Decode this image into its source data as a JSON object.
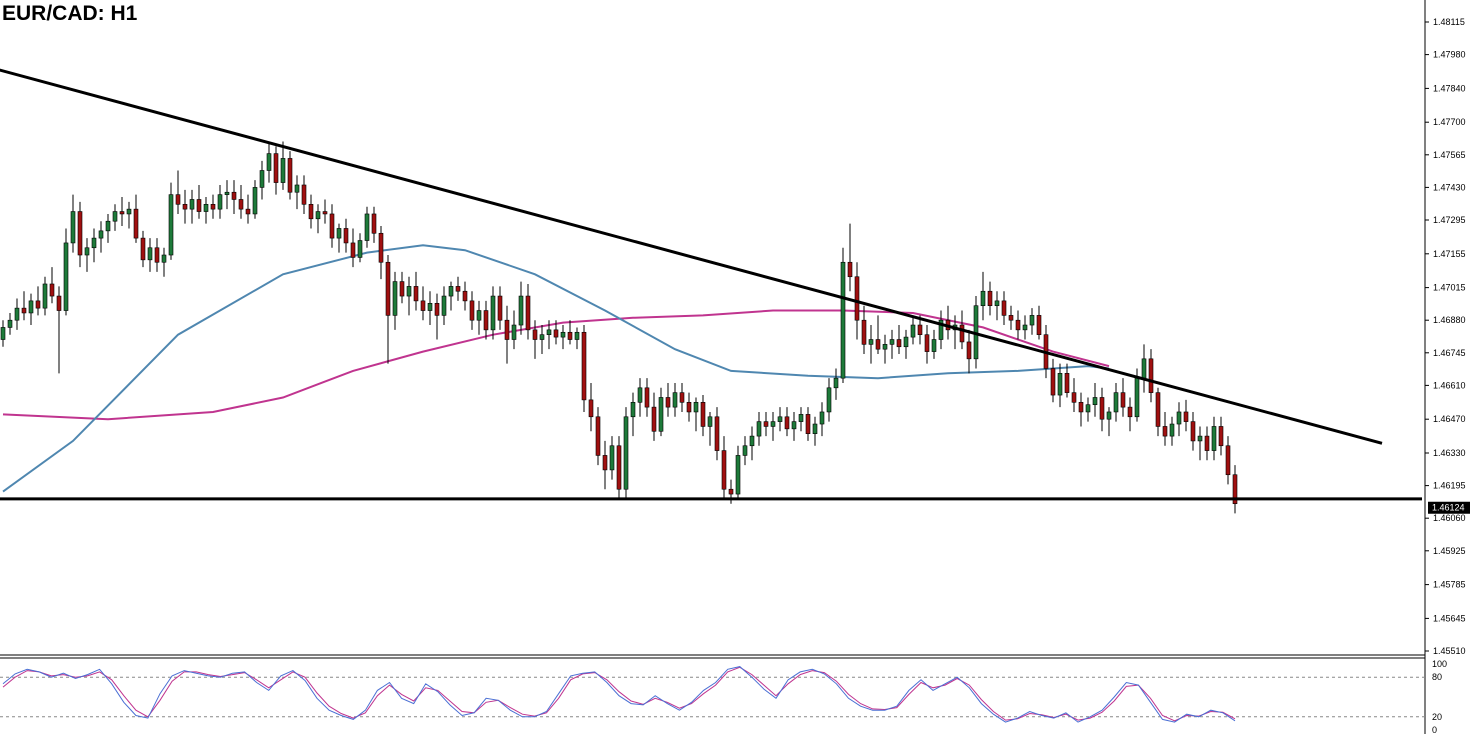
{
  "title": "EUR/CAD: H1",
  "chart_data": {
    "type": "candlestick",
    "symbol": "EUR/CAD",
    "timeframe": "H1",
    "ylim": [
      1.4551,
      1.4815
    ],
    "price_ticks": [
      "1.48115",
      "1.47980",
      "1.47840",
      "1.47700",
      "1.47565",
      "1.47430",
      "1.47295",
      "1.47155",
      "1.47015",
      "1.46880",
      "1.46745",
      "1.46610",
      "1.46470",
      "1.46330",
      "1.46195",
      "1.46060",
      "1.45925",
      "1.45785",
      "1.45645",
      "1.45510"
    ],
    "current_price_label": "1.46124",
    "current_price": 1.46124,
    "support_line_price": 1.4614,
    "trendline": {
      "start_bar": -8,
      "start_price": 1.47975,
      "end_bar": 197,
      "end_price": 1.4637
    },
    "ma_fast_color": "#4f87b0",
    "ma_slow_color": "#c0348f",
    "candle_up_color": "#1e7a3a",
    "candle_down_color": "#a01010",
    "ma_fast": [
      [
        0,
        1.4617
      ],
      [
        10,
        1.4638
      ],
      [
        25,
        1.4682
      ],
      [
        40,
        1.4707
      ],
      [
        52,
        1.4716
      ],
      [
        60,
        1.4719
      ],
      [
        66,
        1.4717
      ],
      [
        76,
        1.4707
      ],
      [
        86,
        1.4692
      ],
      [
        96,
        1.4676
      ],
      [
        104,
        1.4667
      ],
      [
        115,
        1.4665
      ],
      [
        125,
        1.4664
      ],
      [
        135,
        1.4666
      ],
      [
        145,
        1.4667
      ],
      [
        155,
        1.4669
      ],
      [
        158,
        1.4668
      ]
    ],
    "ma_slow": [
      [
        0,
        1.4649
      ],
      [
        15,
        1.4647
      ],
      [
        30,
        1.465
      ],
      [
        40,
        1.4656
      ],
      [
        50,
        1.4667
      ],
      [
        60,
        1.4675
      ],
      [
        70,
        1.4682
      ],
      [
        80,
        1.4687
      ],
      [
        90,
        1.4689
      ],
      [
        100,
        1.469
      ],
      [
        110,
        1.4692
      ],
      [
        120,
        1.4692
      ],
      [
        130,
        1.4691
      ],
      [
        140,
        1.4685
      ],
      [
        150,
        1.4675
      ],
      [
        158,
        1.4669
      ]
    ],
    "stochastic": {
      "levels": [
        "100",
        "80",
        "20",
        "0"
      ],
      "overbought": 80,
      "oversold": 20,
      "main_color": "#4a6fd4",
      "signal_color": "#c0348f",
      "main": [
        70,
        85,
        92,
        88,
        80,
        86,
        78,
        84,
        92,
        70,
        42,
        22,
        18,
        55,
        82,
        90,
        86,
        82,
        80,
        86,
        88,
        72,
        60,
        82,
        90,
        75,
        48,
        30,
        22,
        16,
        30,
        60,
        72,
        48,
        40,
        70,
        58,
        38,
        22,
        26,
        48,
        45,
        30,
        20,
        20,
        28,
        55,
        82,
        86,
        88,
        72,
        52,
        40,
        38,
        52,
        40,
        30,
        42,
        60,
        72,
        92,
        96,
        80,
        62,
        48,
        76,
        88,
        92,
        85,
        70,
        48,
        36,
        30,
        30,
        36,
        60,
        76,
        60,
        70,
        80,
        64,
        40,
        24,
        12,
        18,
        28,
        22,
        18,
        26,
        12,
        20,
        30,
        50,
        72,
        68,
        42,
        16,
        12,
        24,
        20,
        30,
        26,
        14
      ],
      "signal": [
        65,
        80,
        90,
        88,
        82,
        84,
        80,
        82,
        88,
        76,
        52,
        30,
        20,
        45,
        74,
        88,
        88,
        84,
        81,
        84,
        87,
        76,
        64,
        76,
        88,
        80,
        56,
        36,
        25,
        18,
        26,
        52,
        68,
        54,
        44,
        64,
        60,
        44,
        28,
        26,
        42,
        45,
        34,
        24,
        21,
        26,
        48,
        76,
        85,
        87,
        76,
        58,
        44,
        39,
        48,
        42,
        33,
        40,
        55,
        68,
        88,
        95,
        84,
        68,
        52,
        70,
        84,
        90,
        87,
        74,
        54,
        40,
        32,
        31,
        34,
        54,
        72,
        64,
        68,
        78,
        68,
        46,
        28,
        15,
        17,
        25,
        23,
        19,
        24,
        15,
        18,
        27,
        44,
        66,
        68,
        48,
        22,
        14,
        22,
        21,
        28,
        27,
        17
      ]
    },
    "ohlc": [
      [
        1.468,
        1.4688,
        1.4677,
        1.4685
      ],
      [
        1.4685,
        1.4691,
        1.4682,
        1.4688
      ],
      [
        1.4688,
        1.4697,
        1.4684,
        1.4693
      ],
      [
        1.4693,
        1.47,
        1.4688,
        1.4691
      ],
      [
        1.4691,
        1.4699,
        1.4686,
        1.4696
      ],
      [
        1.4696,
        1.4702,
        1.469,
        1.4693
      ],
      [
        1.4693,
        1.4706,
        1.469,
        1.4703
      ],
      [
        1.4703,
        1.471,
        1.4695,
        1.4698
      ],
      [
        1.4698,
        1.4702,
        1.4666,
        1.4692
      ],
      [
        1.4692,
        1.4726,
        1.469,
        1.472
      ],
      [
        1.472,
        1.474,
        1.4716,
        1.4733
      ],
      [
        1.4733,
        1.4737,
        1.471,
        1.4715
      ],
      [
        1.4715,
        1.4722,
        1.4708,
        1.4718
      ],
      [
        1.4718,
        1.4726,
        1.4712,
        1.4722
      ],
      [
        1.4722,
        1.4729,
        1.4716,
        1.4725
      ],
      [
        1.4725,
        1.4732,
        1.472,
        1.4729
      ],
      [
        1.4729,
        1.4736,
        1.4725,
        1.4733
      ],
      [
        1.4733,
        1.4739,
        1.4727,
        1.4732
      ],
      [
        1.4732,
        1.4737,
        1.4726,
        1.4734
      ],
      [
        1.4734,
        1.474,
        1.472,
        1.4722
      ],
      [
        1.4722,
        1.4725,
        1.471,
        1.4713
      ],
      [
        1.4713,
        1.4722,
        1.4708,
        1.4718
      ],
      [
        1.4718,
        1.4722,
        1.4708,
        1.4712
      ],
      [
        1.4712,
        1.4718,
        1.4706,
        1.4715
      ],
      [
        1.4715,
        1.4745,
        1.4713,
        1.474
      ],
      [
        1.474,
        1.475,
        1.4732,
        1.4736
      ],
      [
        1.4736,
        1.4742,
        1.4728,
        1.4734
      ],
      [
        1.4734,
        1.4742,
        1.4728,
        1.4738
      ],
      [
        1.4738,
        1.4744,
        1.473,
        1.4733
      ],
      [
        1.4733,
        1.4739,
        1.4728,
        1.4736
      ],
      [
        1.4736,
        1.474,
        1.473,
        1.4734
      ],
      [
        1.4734,
        1.4744,
        1.473,
        1.474
      ],
      [
        1.474,
        1.4746,
        1.4734,
        1.4741
      ],
      [
        1.4741,
        1.4746,
        1.4732,
        1.4738
      ],
      [
        1.4738,
        1.4744,
        1.473,
        1.4734
      ],
      [
        1.4734,
        1.474,
        1.4728,
        1.4732
      ],
      [
        1.4732,
        1.4746,
        1.473,
        1.4743
      ],
      [
        1.4743,
        1.4754,
        1.4738,
        1.475
      ],
      [
        1.475,
        1.4762,
        1.4745,
        1.4757
      ],
      [
        1.4757,
        1.476,
        1.474,
        1.4745
      ],
      [
        1.4745,
        1.4762,
        1.4742,
        1.4755
      ],
      [
        1.4755,
        1.4758,
        1.4738,
        1.4741
      ],
      [
        1.4741,
        1.4748,
        1.4734,
        1.4744
      ],
      [
        1.4744,
        1.4748,
        1.4732,
        1.4736
      ],
      [
        1.4736,
        1.474,
        1.4726,
        1.473
      ],
      [
        1.473,
        1.4736,
        1.4724,
        1.4733
      ],
      [
        1.4733,
        1.4738,
        1.4728,
        1.4732
      ],
      [
        1.4732,
        1.4736,
        1.4718,
        1.4722
      ],
      [
        1.4722,
        1.4728,
        1.4716,
        1.4726
      ],
      [
        1.4726,
        1.473,
        1.4716,
        1.472
      ],
      [
        1.472,
        1.4726,
        1.471,
        1.4714
      ],
      [
        1.4714,
        1.4724,
        1.4712,
        1.4721
      ],
      [
        1.4721,
        1.4735,
        1.4718,
        1.4732
      ],
      [
        1.4732,
        1.4735,
        1.472,
        1.4724
      ],
      [
        1.4724,
        1.4727,
        1.4705,
        1.4712
      ],
      [
        1.4712,
        1.4715,
        1.467,
        1.469
      ],
      [
        1.469,
        1.4708,
        1.4684,
        1.4704
      ],
      [
        1.4704,
        1.4708,
        1.4695,
        1.4698
      ],
      [
        1.4698,
        1.4706,
        1.469,
        1.4702
      ],
      [
        1.4702,
        1.4708,
        1.4692,
        1.4696
      ],
      [
        1.4696,
        1.4702,
        1.4688,
        1.4692
      ],
      [
        1.4692,
        1.47,
        1.4686,
        1.4695
      ],
      [
        1.4695,
        1.4699,
        1.468,
        1.469
      ],
      [
        1.469,
        1.4702,
        1.4686,
        1.4698
      ],
      [
        1.4698,
        1.4704,
        1.4692,
        1.4702
      ],
      [
        1.4702,
        1.4706,
        1.4696,
        1.47
      ],
      [
        1.47,
        1.4704,
        1.4692,
        1.4696
      ],
      [
        1.4696,
        1.47,
        1.4684,
        1.4688
      ],
      [
        1.4688,
        1.4696,
        1.4682,
        1.4692
      ],
      [
        1.4692,
        1.4696,
        1.468,
        1.4684
      ],
      [
        1.4684,
        1.4702,
        1.468,
        1.4698
      ],
      [
        1.4698,
        1.4702,
        1.4684,
        1.4688
      ],
      [
        1.4688,
        1.4694,
        1.467,
        1.468
      ],
      [
        1.468,
        1.4692,
        1.4676,
        1.4686
      ],
      [
        1.4686,
        1.4704,
        1.4682,
        1.4698
      ],
      [
        1.4698,
        1.4703,
        1.468,
        1.4684
      ],
      [
        1.4684,
        1.4688,
        1.4672,
        1.468
      ],
      [
        1.468,
        1.4686,
        1.4674,
        1.4682
      ],
      [
        1.4682,
        1.4688,
        1.4676,
        1.4684
      ],
      [
        1.4684,
        1.4688,
        1.4678,
        1.4681
      ],
      [
        1.4681,
        1.4686,
        1.4676,
        1.4683
      ],
      [
        1.4683,
        1.4688,
        1.4678,
        1.468
      ],
      [
        1.468,
        1.4685,
        1.4676,
        1.4683
      ],
      [
        1.4683,
        1.4686,
        1.465,
        1.4655
      ],
      [
        1.4655,
        1.4662,
        1.4642,
        1.4648
      ],
      [
        1.4648,
        1.4652,
        1.4628,
        1.4632
      ],
      [
        1.4632,
        1.4638,
        1.4618,
        1.4626
      ],
      [
        1.4626,
        1.464,
        1.4622,
        1.4636
      ],
      [
        1.4636,
        1.464,
        1.4614,
        1.4618
      ],
      [
        1.4618,
        1.4652,
        1.4614,
        1.4648
      ],
      [
        1.4648,
        1.4658,
        1.464,
        1.4654
      ],
      [
        1.4654,
        1.4664,
        1.4648,
        1.466
      ],
      [
        1.466,
        1.4664,
        1.4648,
        1.4652
      ],
      [
        1.4652,
        1.4658,
        1.4638,
        1.4642
      ],
      [
        1.4642,
        1.466,
        1.464,
        1.4656
      ],
      [
        1.4656,
        1.4662,
        1.4648,
        1.4652
      ],
      [
        1.4652,
        1.4662,
        1.4648,
        1.4658
      ],
      [
        1.4658,
        1.4662,
        1.465,
        1.4654
      ],
      [
        1.4654,
        1.4658,
        1.4646,
        1.465
      ],
      [
        1.465,
        1.4656,
        1.4642,
        1.4654
      ],
      [
        1.4654,
        1.4657,
        1.464,
        1.4644
      ],
      [
        1.4644,
        1.465,
        1.4636,
        1.4648
      ],
      [
        1.4648,
        1.4652,
        1.463,
        1.4634
      ],
      [
        1.4634,
        1.464,
        1.4614,
        1.4618
      ],
      [
        1.4618,
        1.4622,
        1.4612,
        1.4616
      ],
      [
        1.4616,
        1.4636,
        1.4614,
        1.4632
      ],
      [
        1.4632,
        1.464,
        1.4628,
        1.4636
      ],
      [
        1.4636,
        1.4644,
        1.463,
        1.464
      ],
      [
        1.464,
        1.465,
        1.4636,
        1.4646
      ],
      [
        1.4646,
        1.465,
        1.464,
        1.4644
      ],
      [
        1.4644,
        1.465,
        1.4638,
        1.4646
      ],
      [
        1.4646,
        1.4652,
        1.4642,
        1.4648
      ],
      [
        1.4648,
        1.4652,
        1.464,
        1.4643
      ],
      [
        1.4643,
        1.465,
        1.4638,
        1.4646
      ],
      [
        1.4646,
        1.4652,
        1.4642,
        1.4649
      ],
      [
        1.4649,
        1.4652,
        1.4638,
        1.4641
      ],
      [
        1.4641,
        1.4648,
        1.4636,
        1.4645
      ],
      [
        1.4645,
        1.4654,
        1.464,
        1.465
      ],
      [
        1.465,
        1.4664,
        1.4646,
        1.466
      ],
      [
        1.466,
        1.4668,
        1.4655,
        1.4664
      ],
      [
        1.4664,
        1.4718,
        1.4662,
        1.4712
      ],
      [
        1.4712,
        1.4728,
        1.47,
        1.4706
      ],
      [
        1.4706,
        1.4712,
        1.468,
        1.4688
      ],
      [
        1.4688,
        1.4694,
        1.4674,
        1.4678
      ],
      [
        1.4678,
        1.4686,
        1.467,
        1.468
      ],
      [
        1.468,
        1.469,
        1.4674,
        1.4676
      ],
      [
        1.4676,
        1.4682,
        1.467,
        1.4678
      ],
      [
        1.4678,
        1.4684,
        1.4672,
        1.468
      ],
      [
        1.468,
        1.4686,
        1.4674,
        1.4677
      ],
      [
        1.4677,
        1.4684,
        1.4672,
        1.4681
      ],
      [
        1.4681,
        1.469,
        1.4678,
        1.4686
      ],
      [
        1.4686,
        1.469,
        1.4678,
        1.4682
      ],
      [
        1.4682,
        1.4686,
        1.467,
        1.4675
      ],
      [
        1.4675,
        1.4684,
        1.4672,
        1.468
      ],
      [
        1.468,
        1.4692,
        1.4676,
        1.4688
      ],
      [
        1.4688,
        1.4694,
        1.468,
        1.4684
      ],
      [
        1.4684,
        1.469,
        1.4676,
        1.4686
      ],
      [
        1.4686,
        1.4692,
        1.4676,
        1.4679
      ],
      [
        1.4679,
        1.4684,
        1.4666,
        1.4672
      ],
      [
        1.4672,
        1.4698,
        1.4668,
        1.4694
      ],
      [
        1.4694,
        1.4708,
        1.4688,
        1.47
      ],
      [
        1.47,
        1.4704,
        1.469,
        1.4694
      ],
      [
        1.4694,
        1.47,
        1.4688,
        1.4696
      ],
      [
        1.4696,
        1.47,
        1.4686,
        1.469
      ],
      [
        1.469,
        1.4694,
        1.4684,
        1.4688
      ],
      [
        1.4688,
        1.4692,
        1.468,
        1.4684
      ],
      [
        1.4684,
        1.469,
        1.468,
        1.4686
      ],
      [
        1.4686,
        1.4693,
        1.4682,
        1.469
      ],
      [
        1.469,
        1.4694,
        1.468,
        1.4682
      ],
      [
        1.4682,
        1.4686,
        1.4664,
        1.4668
      ],
      [
        1.4668,
        1.4672,
        1.4654,
        1.4657
      ],
      [
        1.4657,
        1.467,
        1.4652,
        1.4666
      ],
      [
        1.4666,
        1.467,
        1.4656,
        1.4658
      ],
      [
        1.4658,
        1.4664,
        1.465,
        1.4654
      ],
      [
        1.4654,
        1.4658,
        1.4644,
        1.465
      ],
      [
        1.465,
        1.4656,
        1.4646,
        1.4653
      ],
      [
        1.4653,
        1.4662,
        1.4648,
        1.4656
      ],
      [
        1.4656,
        1.466,
        1.4642,
        1.4647
      ],
      [
        1.4647,
        1.4652,
        1.464,
        1.465
      ],
      [
        1.465,
        1.4662,
        1.4646,
        1.4658
      ],
      [
        1.4658,
        1.4664,
        1.4648,
        1.4652
      ],
      [
        1.4652,
        1.4656,
        1.4642,
        1.4648
      ],
      [
        1.4648,
        1.4668,
        1.4646,
        1.4664
      ],
      [
        1.4664,
        1.4678,
        1.4658,
        1.4672
      ],
      [
        1.4672,
        1.4676,
        1.4654,
        1.4658
      ],
      [
        1.4658,
        1.466,
        1.464,
        1.4644
      ],
      [
        1.4644,
        1.465,
        1.4636,
        1.464
      ],
      [
        1.464,
        1.4648,
        1.4636,
        1.4645
      ],
      [
        1.4645,
        1.4654,
        1.464,
        1.465
      ],
      [
        1.465,
        1.4655,
        1.4642,
        1.4646
      ],
      [
        1.4646,
        1.465,
        1.4634,
        1.4638
      ],
      [
        1.4638,
        1.4644,
        1.463,
        1.464
      ],
      [
        1.464,
        1.4644,
        1.463,
        1.4634
      ],
      [
        1.4634,
        1.4648,
        1.463,
        1.4644
      ],
      [
        1.4644,
        1.4648,
        1.4632,
        1.4636
      ],
      [
        1.4636,
        1.464,
        1.462,
        1.4624
      ],
      [
        1.4624,
        1.4628,
        1.4608,
        1.4612
      ]
    ]
  }
}
